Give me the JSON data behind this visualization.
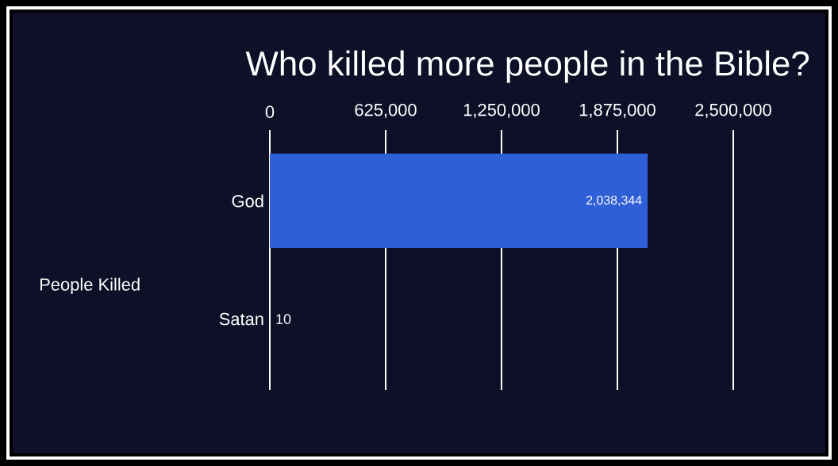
{
  "chart_data": {
    "type": "bar",
    "orientation": "horizontal",
    "title": "Who killed more people in the Bible?",
    "ylabel": "People Killed",
    "categories": [
      "God",
      "Satan"
    ],
    "values": [
      2038344,
      10
    ],
    "colors": [
      "#2f5fd6",
      "#a3432b"
    ],
    "value_labels": [
      "2,038,344",
      "10"
    ],
    "xlim": [
      0,
      2500000
    ],
    "xticks": [
      0,
      {
        "value": 625000,
        "label": "625,000"
      },
      {
        "value": 1250000,
        "label": "1,250,000"
      },
      {
        "value": 1875000,
        "label": "1,875,000"
      },
      {
        "value": 2500000,
        "label": "2,500,000"
      }
    ],
    "grid": "x"
  }
}
